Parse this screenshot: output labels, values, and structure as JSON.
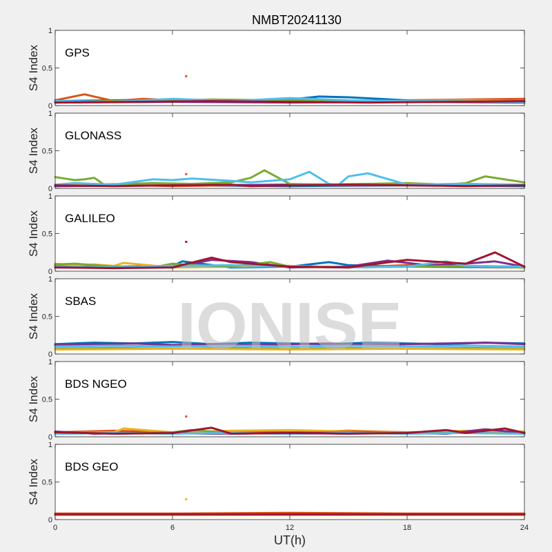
{
  "figure": {
    "title": "NMBT20241130",
    "xlabel": "UT(h)",
    "watermark": "IONISE",
    "background": "#f0f0f0"
  },
  "chart_data": {
    "type": "line",
    "title": "NMBT20241130",
    "xlabel": "UT(h)",
    "xlim": [
      0,
      24
    ],
    "xticks": [
      0,
      6,
      12,
      18,
      24
    ],
    "grid": false,
    "series_colors": [
      "#0072BD",
      "#D95319",
      "#EDB120",
      "#7E2F8E",
      "#77AC30",
      "#4DBEEE",
      "#A2142F"
    ],
    "panels": [
      {
        "label": "GPS",
        "ylabel": "S4 Index",
        "ylim": [
          0,
          1
        ],
        "yticks": [
          0,
          0.5,
          1
        ],
        "series": [
          {
            "color": "#0072BD",
            "x": [
              0,
              3,
              6,
              9,
              12,
              13.5,
              15,
              18,
              21,
              24
            ],
            "y": [
              0.06,
              0.07,
              0.08,
              0.06,
              0.08,
              0.12,
              0.11,
              0.07,
              0.06,
              0.05
            ]
          },
          {
            "color": "#D95319",
            "x": [
              0,
              1.5,
              3,
              4.5,
              6,
              9,
              12,
              15,
              18,
              21,
              24
            ],
            "y": [
              0.07,
              0.15,
              0.06,
              0.09,
              0.07,
              0.06,
              0.08,
              0.06,
              0.07,
              0.08,
              0.09
            ]
          },
          {
            "color": "#EDB120",
            "x": [
              0,
              3,
              6,
              9,
              12,
              15,
              18,
              21,
              24
            ],
            "y": [
              0.05,
              0.06,
              0.05,
              0.07,
              0.06,
              0.05,
              0.06,
              0.07,
              0.06
            ]
          },
          {
            "color": "#7E2F8E",
            "x": [
              0,
              6,
              12,
              18,
              24
            ],
            "y": [
              0.04,
              0.05,
              0.04,
              0.05,
              0.04
            ]
          },
          {
            "color": "#77AC30",
            "x": [
              0,
              4,
              8,
              12,
              16,
              20,
              24
            ],
            "y": [
              0.05,
              0.06,
              0.08,
              0.07,
              0.05,
              0.06,
              0.05
            ]
          },
          {
            "color": "#4DBEEE",
            "x": [
              0,
              3,
              6,
              9,
              12,
              15,
              18,
              24
            ],
            "y": [
              0.06,
              0.05,
              0.09,
              0.06,
              0.1,
              0.07,
              0.06,
              0.05
            ]
          },
          {
            "color": "#A2142F",
            "x": [
              0,
              4,
              8,
              12,
              16,
              20,
              24
            ],
            "y": [
              0.04,
              0.05,
              0.06,
              0.05,
              0.04,
              0.05,
              0.06
            ]
          }
        ],
        "outliers": [
          {
            "x": 6.7,
            "y": 0.39,
            "color": "#D95319"
          }
        ]
      },
      {
        "label": "GLONASS",
        "ylabel": "S4 Index",
        "ylim": [
          0,
          1
        ],
        "yticks": [
          0,
          0.5,
          1
        ],
        "series": [
          {
            "color": "#0072BD",
            "x": [
              0,
              6,
              12,
              18,
              24
            ],
            "y": [
              0.03,
              0.04,
              0.03,
              0.04,
              0.03
            ]
          },
          {
            "color": "#D95319",
            "x": [
              0,
              3,
              6,
              9,
              12,
              15,
              18,
              21,
              24
            ],
            "y": [
              0.04,
              0.05,
              0.03,
              0.04,
              0.05,
              0.04,
              0.05,
              0.06,
              0.04
            ]
          },
          {
            "color": "#EDB120",
            "x": [
              0,
              4,
              8,
              12,
              16,
              20,
              24
            ],
            "y": [
              0.05,
              0.06,
              0.04,
              0.05,
              0.06,
              0.04,
              0.05
            ]
          },
          {
            "color": "#7E2F8E",
            "x": [
              0,
              6,
              12,
              18,
              24
            ],
            "y": [
              0.03,
              0.04,
              0.05,
              0.04,
              0.05
            ]
          },
          {
            "color": "#77AC30",
            "x": [
              0,
              0.5,
              1,
              1.5,
              2,
              2.5,
              5,
              7,
              9,
              10,
              10.7,
              12,
              14,
              16,
              18,
              20,
              21,
              22,
              24
            ],
            "y": [
              0.15,
              0.13,
              0.11,
              0.12,
              0.14,
              0.05,
              0.07,
              0.06,
              0.08,
              0.14,
              0.24,
              0.06,
              0.05,
              0.06,
              0.07,
              0.05,
              0.07,
              0.16,
              0.08
            ]
          },
          {
            "color": "#4DBEEE",
            "x": [
              0,
              1,
              2,
              3,
              5,
              6,
              7,
              9,
              10,
              11,
              12,
              13,
              14,
              14.5,
              15,
              16,
              18,
              21,
              24
            ],
            "y": [
              0.05,
              0.07,
              0.06,
              0.05,
              0.12,
              0.11,
              0.13,
              0.1,
              0.08,
              0.1,
              0.12,
              0.22,
              0.06,
              0.05,
              0.16,
              0.2,
              0.05,
              0.06,
              0.05
            ]
          },
          {
            "color": "#A2142F",
            "x": [
              0,
              3,
              6,
              9,
              10,
              12,
              15,
              18,
              21,
              24
            ],
            "y": [
              0.04,
              0.03,
              0.04,
              0.05,
              0.03,
              0.04,
              0.05,
              0.04,
              0.03,
              0.04
            ]
          }
        ],
        "outliers": [
          {
            "x": 6.7,
            "y": 0.19,
            "color": "#D95319"
          }
        ]
      },
      {
        "label": "GALILEO",
        "ylabel": "S4 Index",
        "ylim": [
          0,
          1
        ],
        "yticks": [
          0,
          0.5,
          1
        ],
        "series": [
          {
            "color": "#0072BD",
            "x": [
              0,
              3,
              6,
              6.5,
              9,
              12,
              14,
              15,
              18,
              24
            ],
            "y": [
              0.08,
              0.06,
              0.07,
              0.13,
              0.05,
              0.06,
              0.12,
              0.08,
              0.06,
              0.05
            ]
          },
          {
            "color": "#D95319",
            "x": [
              0,
              3,
              6,
              9,
              12,
              15,
              18,
              21,
              24
            ],
            "y": [
              0.07,
              0.06,
              0.05,
              0.06,
              0.07,
              0.05,
              0.08,
              0.06,
              0.05
            ]
          },
          {
            "color": "#EDB120",
            "x": [
              0,
              1,
              2,
              3,
              3.5,
              6,
              9,
              12,
              15,
              18,
              21,
              24
            ],
            "y": [
              0.1,
              0.08,
              0.09,
              0.07,
              0.11,
              0.05,
              0.06,
              0.07,
              0.05,
              0.06,
              0.07,
              0.06
            ]
          },
          {
            "color": "#7E2F8E",
            "x": [
              0,
              3,
              6,
              8,
              10,
              12,
              15,
              17,
              19,
              21,
              22.5,
              24
            ],
            "y": [
              0.05,
              0.06,
              0.05,
              0.15,
              0.12,
              0.05,
              0.06,
              0.14,
              0.08,
              0.1,
              0.13,
              0.06
            ]
          },
          {
            "color": "#77AC30",
            "x": [
              0,
              1,
              2,
              3,
              5,
              6,
              7,
              9,
              10,
              11,
              12,
              15,
              18,
              21,
              24
            ],
            "y": [
              0.09,
              0.1,
              0.08,
              0.06,
              0.05,
              0.1,
              0.08,
              0.06,
              0.09,
              0.12,
              0.06,
              0.05,
              0.06,
              0.07,
              0.05
            ]
          },
          {
            "color": "#4DBEEE",
            "x": [
              0,
              3,
              6,
              9,
              12,
              15,
              18,
              20,
              21,
              24
            ],
            "y": [
              0.06,
              0.05,
              0.07,
              0.08,
              0.06,
              0.05,
              0.06,
              0.13,
              0.07,
              0.06
            ]
          },
          {
            "color": "#A2142F",
            "x": [
              0,
              3,
              6,
              8,
              9,
              12,
              15,
              18,
              21,
              22.5,
              24
            ],
            "y": [
              0.05,
              0.04,
              0.05,
              0.18,
              0.12,
              0.06,
              0.05,
              0.15,
              0.1,
              0.25,
              0.06
            ]
          }
        ],
        "outliers": [
          {
            "x": 6.7,
            "y": 0.39,
            "color": "#A2142F"
          }
        ]
      },
      {
        "label": "SBAS",
        "ylabel": "S4 Index",
        "ylim": [
          0,
          1
        ],
        "yticks": [
          0,
          0.5,
          1
        ],
        "series": [
          {
            "color": "#0072BD",
            "x": [
              0,
              2,
              4,
              6,
              8,
              10,
              12,
              14,
              16,
              18,
              20,
              22,
              24
            ],
            "y": [
              0.13,
              0.15,
              0.14,
              0.16,
              0.13,
              0.15,
              0.14,
              0.13,
              0.15,
              0.14,
              0.13,
              0.15,
              0.14
            ]
          },
          {
            "color": "#7E2F8E",
            "x": [
              0,
              2,
              4,
              6,
              8,
              10,
              12,
              14,
              16,
              18,
              20,
              22,
              24
            ],
            "y": [
              0.12,
              0.13,
              0.14,
              0.12,
              0.13,
              0.12,
              0.13,
              0.14,
              0.12,
              0.13,
              0.14,
              0.15,
              0.13
            ]
          },
          {
            "color": "#4DBEEE",
            "x": [
              0,
              3,
              6,
              9,
              12,
              15,
              18,
              21,
              24
            ],
            "y": [
              0.1,
              0.11,
              0.1,
              0.11,
              0.1,
              0.11,
              0.1,
              0.11,
              0.1
            ]
          },
          {
            "color": "#77AC30",
            "x": [
              0,
              3,
              6,
              9,
              12,
              15,
              18,
              21,
              24
            ],
            "y": [
              0.07,
              0.08,
              0.07,
              0.08,
              0.07,
              0.08,
              0.07,
              0.08,
              0.07
            ]
          },
          {
            "color": "#EDB120",
            "x": [
              0,
              6,
              12,
              18,
              24
            ],
            "y": [
              0.06,
              0.07,
              0.06,
              0.07,
              0.06
            ]
          }
        ],
        "outliers": []
      },
      {
        "label": "BDS NGEO",
        "ylabel": "S4 Index",
        "ylim": [
          0,
          1
        ],
        "yticks": [
          0,
          0.5,
          1
        ],
        "series": [
          {
            "color": "#0072BD",
            "x": [
              0,
              3,
              6,
              9,
              12,
              15,
              18,
              21,
              24
            ],
            "y": [
              0.05,
              0.06,
              0.05,
              0.06,
              0.05,
              0.06,
              0.05,
              0.06,
              0.05
            ]
          },
          {
            "color": "#D95319",
            "x": [
              0,
              3,
              6,
              9,
              12,
              15,
              18,
              21,
              24
            ],
            "y": [
              0.06,
              0.08,
              0.06,
              0.07,
              0.06,
              0.08,
              0.06,
              0.07,
              0.06
            ]
          },
          {
            "color": "#EDB120",
            "x": [
              0,
              3,
              3.5,
              6,
              9,
              12,
              15,
              18,
              21,
              24
            ],
            "y": [
              0.05,
              0.06,
              0.11,
              0.06,
              0.08,
              0.09,
              0.07,
              0.06,
              0.08,
              0.07
            ]
          },
          {
            "color": "#7E2F8E",
            "x": [
              0,
              2,
              4,
              6,
              8,
              12,
              16,
              20,
              22,
              24
            ],
            "y": [
              0.07,
              0.04,
              0.06,
              0.05,
              0.04,
              0.05,
              0.06,
              0.04,
              0.1,
              0.05
            ]
          },
          {
            "color": "#77AC30",
            "x": [
              0,
              3,
              6,
              7,
              9,
              12,
              15,
              18,
              21,
              24
            ],
            "y": [
              0.04,
              0.05,
              0.06,
              0.09,
              0.05,
              0.04,
              0.05,
              0.06,
              0.05,
              0.04
            ]
          },
          {
            "color": "#4DBEEE",
            "x": [
              0,
              3,
              6,
              9,
              12,
              15,
              18,
              21,
              24
            ],
            "y": [
              0.04,
              0.05,
              0.04,
              0.05,
              0.04,
              0.05,
              0.04,
              0.05,
              0.04
            ]
          },
          {
            "color": "#A2142F",
            "x": [
              0,
              3,
              6,
              8,
              9,
              12,
              15,
              18,
              20,
              21,
              23,
              24
            ],
            "y": [
              0.06,
              0.04,
              0.05,
              0.12,
              0.04,
              0.05,
              0.04,
              0.05,
              0.09,
              0.05,
              0.11,
              0.05
            ]
          }
        ],
        "outliers": [
          {
            "x": 6.7,
            "y": 0.27,
            "color": "#D95319"
          }
        ]
      },
      {
        "label": "BDS GEO",
        "ylabel": "S4 Index",
        "ylim": [
          0,
          1
        ],
        "yticks": [
          0,
          0.5,
          1
        ],
        "series": [
          {
            "color": "#EDB120",
            "x": [
              0,
              6,
              12,
              18,
              24
            ],
            "y": [
              0.06,
              0.06,
              0.06,
              0.06,
              0.06
            ]
          },
          {
            "color": "#D95319",
            "x": [
              0,
              6,
              12,
              18,
              24
            ],
            "y": [
              0.08,
              0.08,
              0.09,
              0.08,
              0.08
            ]
          },
          {
            "color": "#A2142F",
            "x": [
              0,
              6,
              12,
              18,
              24
            ],
            "y": [
              0.07,
              0.07,
              0.07,
              0.07,
              0.07
            ]
          }
        ],
        "outliers": [
          {
            "x": 6.7,
            "y": 0.27,
            "color": "#EDB120"
          }
        ]
      }
    ]
  }
}
